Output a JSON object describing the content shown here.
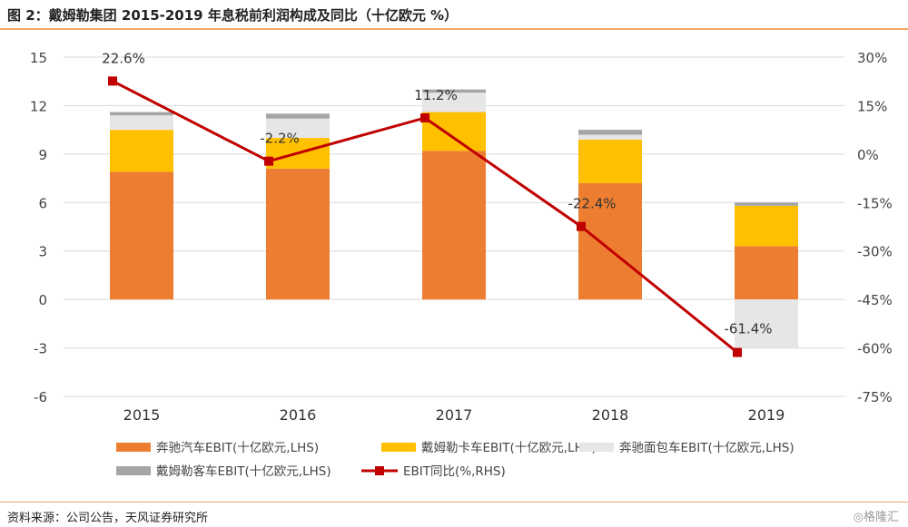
{
  "title": "图 2：戴姆勒集团 2015-2019 年息税前利润构成及同比（十亿欧元 %）",
  "source": "资料来源：公司公告，天风证券研究所",
  "watermark": "◎格隆汇",
  "chart_data": {
    "type": "bar",
    "stacked": true,
    "categories": [
      "2015",
      "2016",
      "2017",
      "2018",
      "2019"
    ],
    "left_axis": {
      "ticks": [
        "15",
        "12",
        "9",
        "6",
        "3",
        "0",
        "-3",
        "-6"
      ],
      "ylim": [
        -6,
        15
      ]
    },
    "right_axis": {
      "ticks": [
        "30%",
        "15%",
        "0%",
        "-15%",
        "-30%",
        "-45%",
        "-60%",
        "-75%"
      ],
      "ylim": [
        -75,
        30
      ]
    },
    "series": [
      {
        "name": "奔驰汽车EBIT(十亿欧元,LHS)",
        "color": "#ED7D31",
        "values": [
          7.9,
          8.1,
          9.2,
          7.2,
          3.3
        ]
      },
      {
        "name": "戴姆勒卡车EBIT(十亿欧元,LHS)",
        "color": "#FFC000",
        "values": [
          2.6,
          1.9,
          2.4,
          2.7,
          2.5
        ]
      },
      {
        "name": "奔驰面包车EBIT(十亿欧元,LHS)",
        "color": "#E7E6E6",
        "values": [
          0.9,
          1.2,
          1.2,
          0.3,
          -3.0
        ]
      },
      {
        "name": "戴姆勒客车EBIT(十亿欧元,LHS)",
        "color": "#A5A5A5",
        "values": [
          0.2,
          0.3,
          0.2,
          0.3,
          0.2
        ]
      }
    ],
    "line": {
      "name": "EBIT同比(%,RHS)",
      "color": "#C00000",
      "values": [
        22.6,
        -2.2,
        11.2,
        -22.4,
        -61.4
      ],
      "labels": [
        "22.6%",
        "-2.2%",
        "11.2%",
        "-22.4%",
        "-61.4%"
      ]
    },
    "legend_position": "bottom"
  }
}
